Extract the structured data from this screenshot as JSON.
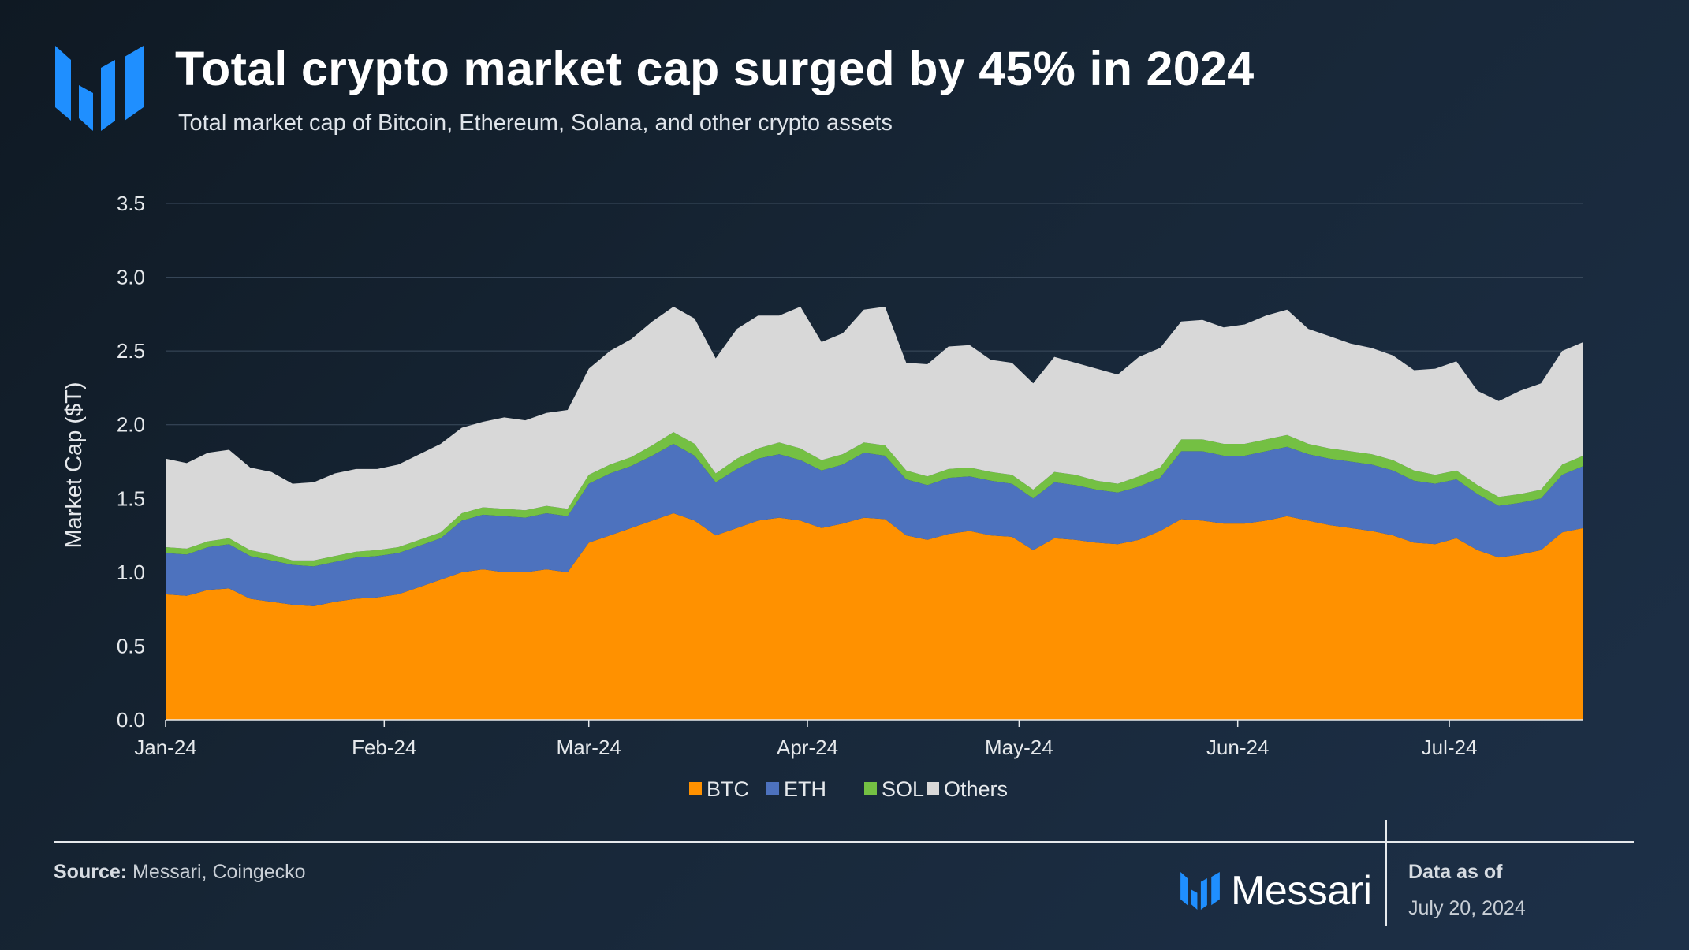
{
  "header": {
    "title": "Total crypto market cap surged by 45% in 2024",
    "subtitle": "Total market cap of Bitcoin, Ethereum, Solana, and other crypto assets",
    "logo_icon": "messari-logo-icon"
  },
  "footer": {
    "source_label": "Source:",
    "source_text": "Messari, Coingecko",
    "brand_name": "Messari",
    "as_of_label": "Data as of",
    "as_of_date": "July 20, 2024"
  },
  "colors": {
    "btc": "#ff9100",
    "eth": "#4d72be",
    "sol": "#74c043",
    "others": "#d8d8d8",
    "brand": "#1f8fff"
  },
  "chart_data": {
    "type": "area",
    "stacked": true,
    "title": "Total crypto market cap surged by 45% in 2024",
    "ylabel": "Market Cap ($T)",
    "xlabel": "",
    "ylim": [
      0,
      3.5
    ],
    "yticks": [
      "0.0",
      "0.5",
      "1.0",
      "1.5",
      "2.0",
      "2.5",
      "3.0",
      "3.5"
    ],
    "grid": true,
    "legend_position": "bottom-center",
    "x_tick_labels": [
      {
        "date": "2024-01-01",
        "label": "Jan-24"
      },
      {
        "date": "2024-02-01",
        "label": "Feb-24"
      },
      {
        "date": "2024-03-01",
        "label": "Mar-24"
      },
      {
        "date": "2024-04-01",
        "label": "Apr-24"
      },
      {
        "date": "2024-05-01",
        "label": "May-24"
      },
      {
        "date": "2024-06-01",
        "label": "Jun-24"
      },
      {
        "date": "2024-07-01",
        "label": "Jul-24"
      }
    ],
    "x": [
      "2024-01-01",
      "2024-01-04",
      "2024-01-07",
      "2024-01-10",
      "2024-01-13",
      "2024-01-16",
      "2024-01-19",
      "2024-01-22",
      "2024-01-25",
      "2024-01-28",
      "2024-01-31",
      "2024-02-03",
      "2024-02-06",
      "2024-02-09",
      "2024-02-12",
      "2024-02-15",
      "2024-02-18",
      "2024-02-21",
      "2024-02-24",
      "2024-02-27",
      "2024-03-01",
      "2024-03-04",
      "2024-03-07",
      "2024-03-10",
      "2024-03-13",
      "2024-03-16",
      "2024-03-19",
      "2024-03-22",
      "2024-03-25",
      "2024-03-28",
      "2024-03-31",
      "2024-04-03",
      "2024-04-06",
      "2024-04-09",
      "2024-04-12",
      "2024-04-15",
      "2024-04-18",
      "2024-04-21",
      "2024-04-24",
      "2024-04-27",
      "2024-04-30",
      "2024-05-03",
      "2024-05-06",
      "2024-05-09",
      "2024-05-12",
      "2024-05-15",
      "2024-05-18",
      "2024-05-21",
      "2024-05-24",
      "2024-05-27",
      "2024-05-30",
      "2024-06-02",
      "2024-06-05",
      "2024-06-08",
      "2024-06-11",
      "2024-06-14",
      "2024-06-17",
      "2024-06-20",
      "2024-06-23",
      "2024-06-26",
      "2024-06-29",
      "2024-07-02",
      "2024-07-05",
      "2024-07-08",
      "2024-07-11",
      "2024-07-14",
      "2024-07-17",
      "2024-07-20"
    ],
    "series": [
      {
        "name": "BTC",
        "values": [
          0.85,
          0.84,
          0.88,
          0.89,
          0.82,
          0.8,
          0.78,
          0.77,
          0.8,
          0.82,
          0.83,
          0.85,
          0.9,
          0.95,
          1.0,
          1.02,
          1.0,
          1.0,
          1.02,
          1.0,
          1.2,
          1.25,
          1.3,
          1.35,
          1.4,
          1.35,
          1.25,
          1.3,
          1.35,
          1.37,
          1.35,
          1.3,
          1.33,
          1.37,
          1.36,
          1.25,
          1.22,
          1.26,
          1.28,
          1.25,
          1.24,
          1.15,
          1.23,
          1.22,
          1.2,
          1.19,
          1.22,
          1.28,
          1.36,
          1.35,
          1.33,
          1.33,
          1.35,
          1.38,
          1.35,
          1.32,
          1.3,
          1.28,
          1.25,
          1.2,
          1.19,
          1.23,
          1.15,
          1.1,
          1.12,
          1.15,
          1.27,
          1.3
        ]
      },
      {
        "name": "ETH",
        "values": [
          0.28,
          0.28,
          0.29,
          0.3,
          0.29,
          0.28,
          0.27,
          0.27,
          0.27,
          0.28,
          0.28,
          0.28,
          0.28,
          0.28,
          0.35,
          0.37,
          0.38,
          0.37,
          0.38,
          0.38,
          0.4,
          0.42,
          0.42,
          0.44,
          0.47,
          0.44,
          0.36,
          0.4,
          0.42,
          0.43,
          0.41,
          0.39,
          0.4,
          0.44,
          0.43,
          0.38,
          0.37,
          0.38,
          0.37,
          0.37,
          0.36,
          0.35,
          0.38,
          0.37,
          0.36,
          0.35,
          0.36,
          0.36,
          0.46,
          0.47,
          0.46,
          0.46,
          0.47,
          0.47,
          0.45,
          0.45,
          0.45,
          0.45,
          0.44,
          0.42,
          0.41,
          0.4,
          0.38,
          0.35,
          0.35,
          0.35,
          0.39,
          0.42
        ]
      },
      {
        "name": "SOL",
        "values": [
          0.04,
          0.04,
          0.04,
          0.04,
          0.04,
          0.04,
          0.03,
          0.04,
          0.04,
          0.04,
          0.04,
          0.04,
          0.04,
          0.04,
          0.05,
          0.05,
          0.05,
          0.05,
          0.05,
          0.05,
          0.06,
          0.06,
          0.06,
          0.07,
          0.08,
          0.08,
          0.06,
          0.07,
          0.07,
          0.08,
          0.08,
          0.07,
          0.07,
          0.07,
          0.07,
          0.06,
          0.06,
          0.06,
          0.06,
          0.06,
          0.06,
          0.06,
          0.07,
          0.07,
          0.06,
          0.06,
          0.07,
          0.07,
          0.08,
          0.08,
          0.08,
          0.08,
          0.08,
          0.08,
          0.07,
          0.07,
          0.07,
          0.07,
          0.07,
          0.07,
          0.06,
          0.06,
          0.06,
          0.06,
          0.06,
          0.06,
          0.07,
          0.07
        ]
      },
      {
        "name": "Others",
        "values": [
          0.6,
          0.58,
          0.6,
          0.6,
          0.56,
          0.56,
          0.52,
          0.53,
          0.56,
          0.56,
          0.55,
          0.56,
          0.58,
          0.6,
          0.58,
          0.58,
          0.62,
          0.61,
          0.63,
          0.67,
          0.72,
          0.77,
          0.8,
          0.84,
          0.85,
          0.85,
          0.78,
          0.88,
          0.9,
          0.86,
          0.96,
          0.8,
          0.82,
          0.9,
          0.94,
          0.73,
          0.76,
          0.83,
          0.83,
          0.76,
          0.76,
          0.72,
          0.78,
          0.76,
          0.76,
          0.74,
          0.81,
          0.81,
          0.8,
          0.81,
          0.79,
          0.81,
          0.84,
          0.85,
          0.78,
          0.76,
          0.73,
          0.72,
          0.71,
          0.68,
          0.72,
          0.74,
          0.64,
          0.65,
          0.7,
          0.72,
          0.77,
          0.77
        ]
      }
    ]
  }
}
